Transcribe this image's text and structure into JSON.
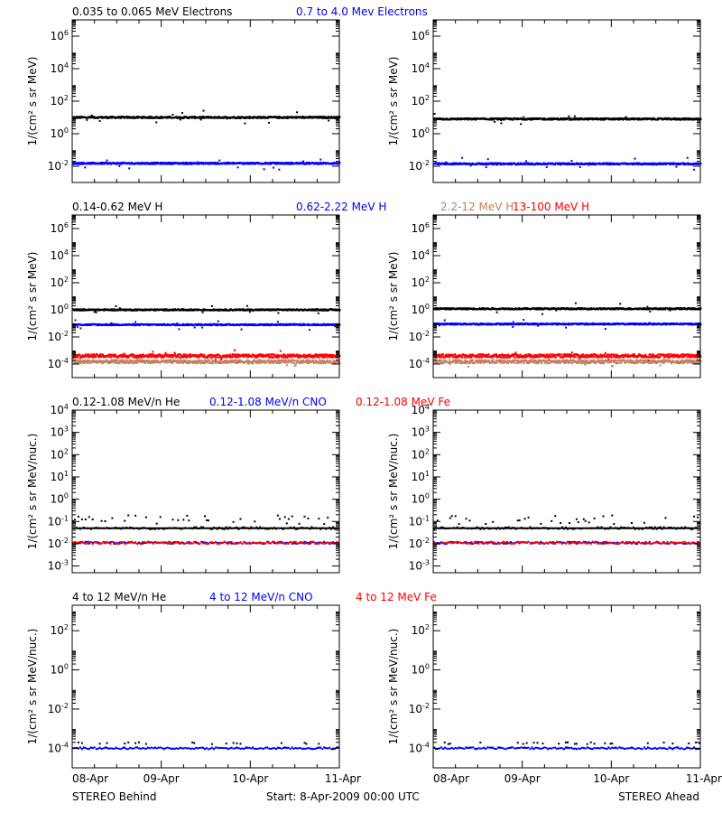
{
  "colors": {
    "black": "#000000",
    "blue": "#0000ff",
    "tan": "#c08060",
    "red": "#ff0000"
  },
  "footer": {
    "left": "STEREO Behind",
    "center": "Start:  8-Apr-2009 00:00 UTC",
    "right": "STEREO Ahead"
  },
  "chart_data": [
    {
      "type": "scatter",
      "row": 0,
      "spacecraft": "STEREO Behind",
      "title": "",
      "legend": [
        {
          "text": "0.035 to 0.065 MeV Electrons",
          "color": "black"
        },
        {
          "text": "0.7 to 4.0 Mev Electrons",
          "color": "blue"
        }
      ],
      "ylabel": "1/(cm² s sr MeV)",
      "y_scale": "log",
      "ylim": [
        0.001,
        10000000
      ],
      "y_tick_labels": [
        "10^-2",
        "10^0",
        "10^2",
        "10^4",
        "10^6"
      ],
      "xlabel": "",
      "x_tick_labels": [
        "08-Apr",
        "09-Apr",
        "10-Apr",
        "11-Apr"
      ],
      "xlim_days": [
        0,
        3
      ],
      "series": [
        {
          "color": "black",
          "level": 10.0
        },
        {
          "color": "blue",
          "level": 0.015
        }
      ]
    },
    {
      "type": "scatter",
      "row": 0,
      "spacecraft": "STEREO Ahead",
      "title": "",
      "ylabel": "1/(cm² s sr MeV)",
      "y_scale": "log",
      "ylim": [
        0.001,
        10000000
      ],
      "y_tick_labels": [
        "10^-2",
        "10^0",
        "10^2",
        "10^4",
        "10^6"
      ],
      "x_tick_labels": [
        "08-Apr",
        "09-Apr",
        "10-Apr",
        "11-Apr"
      ],
      "xlim_days": [
        0,
        3
      ],
      "series": [
        {
          "color": "black",
          "level": 8.0
        },
        {
          "color": "blue",
          "level": 0.014
        }
      ]
    },
    {
      "type": "scatter",
      "row": 1,
      "spacecraft": "STEREO Behind",
      "title": "",
      "legend": [
        {
          "text": "0.14-0.62 MeV H",
          "color": "black"
        },
        {
          "text": "0.62-2.22 MeV H",
          "color": "blue"
        },
        {
          "text": "2.2-12 MeV H",
          "color": "tan"
        },
        {
          "text": "13-100 MeV H",
          "color": "red"
        }
      ],
      "ylabel": "1/(cm² s sr MeV)",
      "y_scale": "log",
      "ylim": [
        1e-05,
        10000000
      ],
      "y_tick_labels": [
        "10^-4",
        "10^-2",
        "10^0",
        "10^2",
        "10^4",
        "10^6"
      ],
      "x_tick_labels": [
        "08-Apr",
        "09-Apr",
        "10-Apr",
        "11-Apr"
      ],
      "xlim_days": [
        0,
        3
      ],
      "series": [
        {
          "color": "black",
          "level": 1.0
        },
        {
          "color": "blue",
          "level": 0.08
        },
        {
          "color": "tan",
          "level": 0.00015
        },
        {
          "color": "red",
          "level": 0.0004
        }
      ]
    },
    {
      "type": "scatter",
      "row": 1,
      "spacecraft": "STEREO Ahead",
      "title": "",
      "ylabel": "1/(cm² s sr MeV)",
      "y_scale": "log",
      "ylim": [
        1e-05,
        10000000
      ],
      "y_tick_labels": [
        "10^-4",
        "10^-2",
        "10^0",
        "10^2",
        "10^4",
        "10^6"
      ],
      "x_tick_labels": [
        "08-Apr",
        "09-Apr",
        "10-Apr",
        "11-Apr"
      ],
      "xlim_days": [
        0,
        3
      ],
      "series": [
        {
          "color": "black",
          "level": 1.2
        },
        {
          "color": "blue",
          "level": 0.09
        },
        {
          "color": "tan",
          "level": 0.00015
        },
        {
          "color": "red",
          "level": 0.0004
        }
      ]
    },
    {
      "type": "scatter",
      "row": 2,
      "spacecraft": "STEREO Behind",
      "title": "",
      "legend": [
        {
          "text": "0.12-1.08 MeV/n He",
          "color": "black"
        },
        {
          "text": "0.12-1.08 MeV/n CNO",
          "color": "blue"
        },
        {
          "text": "0.12-1.08 MeV Fe",
          "color": "red"
        }
      ],
      "ylabel": "1/(cm² s sr MeV/nuc.)",
      "y_scale": "log",
      "ylim": [
        0.0005,
        10000
      ],
      "y_tick_labels": [
        "10^-3",
        "10^-2",
        "10^-1",
        "10^0",
        "10^1",
        "10^2",
        "10^3",
        "10^4"
      ],
      "x_tick_labels": [
        "08-Apr",
        "09-Apr",
        "10-Apr",
        "11-Apr"
      ],
      "xlim_days": [
        0,
        3
      ],
      "series": [
        {
          "color": "black",
          "level": 0.05
        },
        {
          "color": "blue",
          "level": 0.011
        },
        {
          "color": "red",
          "level": 0.011
        }
      ]
    },
    {
      "type": "scatter",
      "row": 2,
      "spacecraft": "STEREO Ahead",
      "title": "",
      "ylabel": "1/(cm² s sr MeV/nuc.)",
      "y_scale": "log",
      "ylim": [
        0.0005,
        10000
      ],
      "y_tick_labels": [
        "10^-3",
        "10^-2",
        "10^-1",
        "10^0",
        "10^1",
        "10^2",
        "10^3",
        "10^4"
      ],
      "x_tick_labels": [
        "08-Apr",
        "09-Apr",
        "10-Apr",
        "11-Apr"
      ],
      "xlim_days": [
        0,
        3
      ],
      "series": [
        {
          "color": "black",
          "level": 0.05
        },
        {
          "color": "blue",
          "level": 0.011
        },
        {
          "color": "red",
          "level": 0.011
        }
      ]
    },
    {
      "type": "scatter",
      "row": 3,
      "spacecraft": "STEREO Behind",
      "title": "",
      "legend": [
        {
          "text": "4 to 12 MeV/n He",
          "color": "black"
        },
        {
          "text": "4 to 12 MeV/n CNO",
          "color": "blue"
        },
        {
          "text": "4 to 12 MeV Fe",
          "color": "red"
        }
      ],
      "ylabel": "1/(cm² s sr MeV/nuc.)",
      "y_scale": "log",
      "ylim": [
        1e-05,
        2000
      ],
      "y_tick_labels": [
        "10^-4",
        "10^-2",
        "10^0",
        "10^2"
      ],
      "x_tick_labels": [
        "08-Apr",
        "09-Apr",
        "10-Apr",
        "11-Apr"
      ],
      "xlim_days": [
        0,
        3
      ],
      "series": [
        {
          "color": "black",
          "level": 0.00018
        },
        {
          "color": "blue",
          "level": 0.0001
        }
      ]
    },
    {
      "type": "scatter",
      "row": 3,
      "spacecraft": "STEREO Ahead",
      "title": "",
      "ylabel": "1/(cm² s sr MeV/nuc.)",
      "y_scale": "log",
      "ylim": [
        1e-05,
        2000
      ],
      "y_tick_labels": [
        "10^-4",
        "10^-2",
        "10^0",
        "10^2"
      ],
      "x_tick_labels": [
        "08-Apr",
        "09-Apr",
        "10-Apr",
        "11-Apr"
      ],
      "xlim_days": [
        0,
        3
      ],
      "series": [
        {
          "color": "black",
          "level": 0.00018
        },
        {
          "color": "blue",
          "level": 0.0001
        }
      ]
    }
  ]
}
